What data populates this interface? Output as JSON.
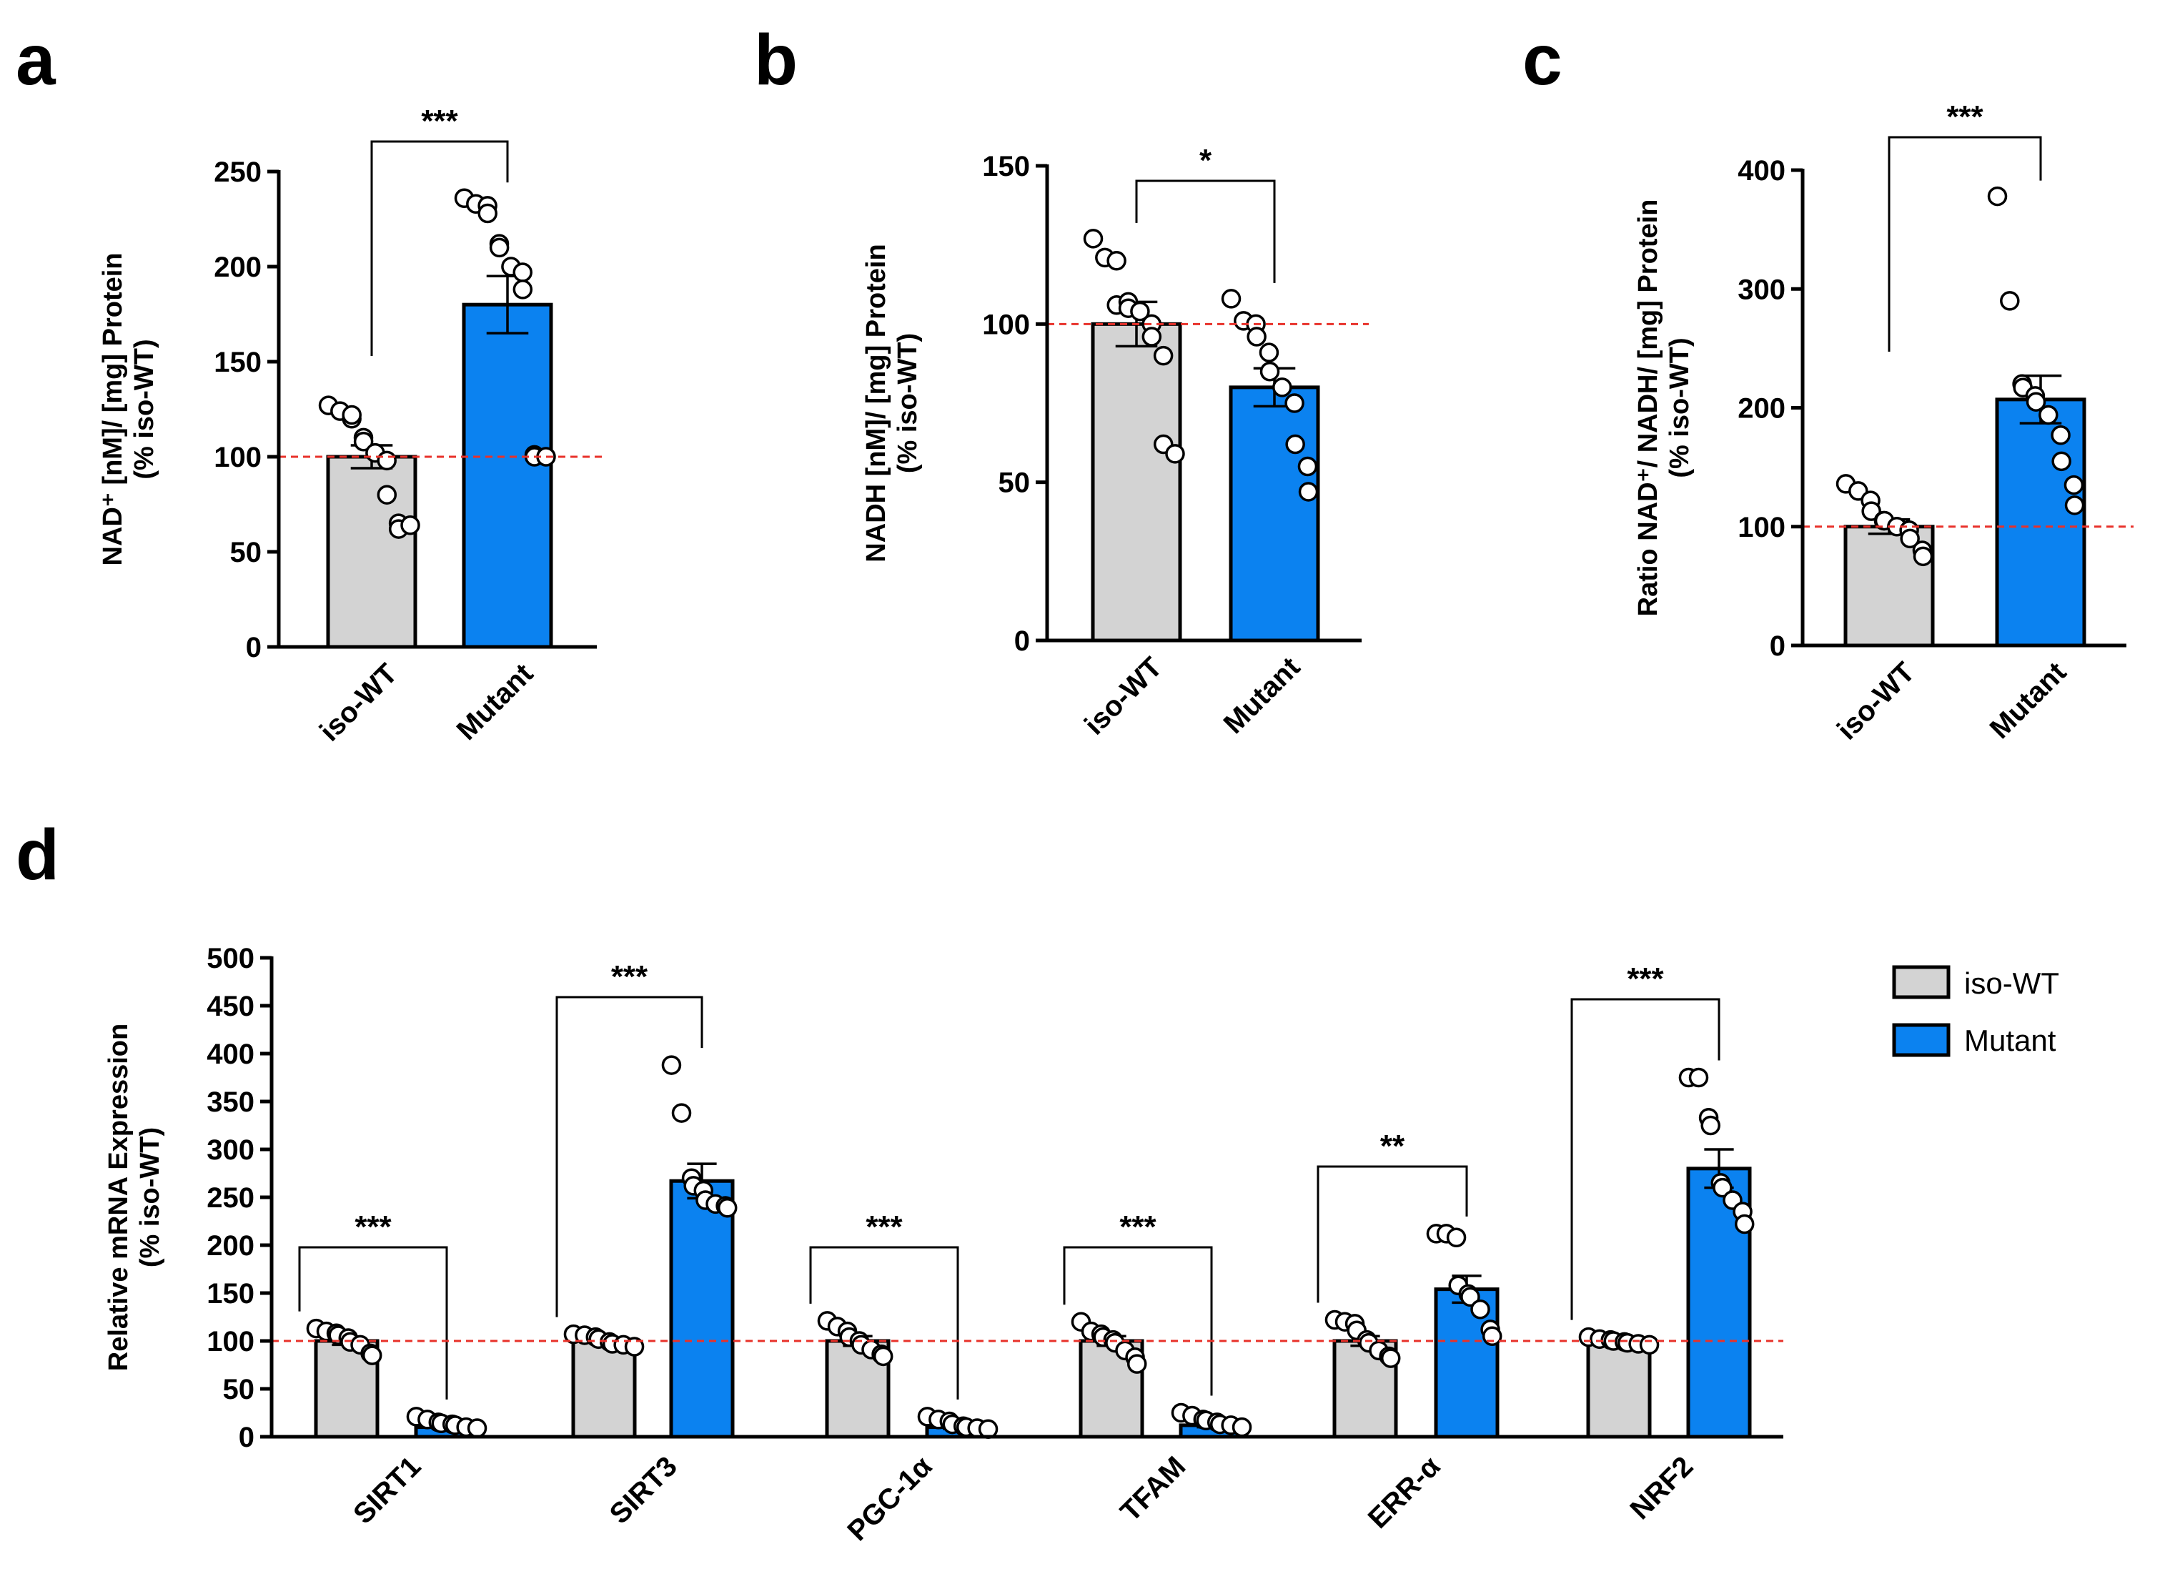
{
  "colors": {
    "wt": "#d3d3d3",
    "mutant": "#0b82f0",
    "reference": "#e8312a",
    "axis": "#000000"
  },
  "legend": [
    {
      "label": "iso-WT",
      "color": "#d3d3d3"
    },
    {
      "label": "Mutant",
      "color": "#0b82f0"
    }
  ],
  "chart_data": [
    {
      "panel": "a",
      "type": "bar",
      "ylabel_line1": "NAD⁺ [nM]/ [mg] Protein",
      "ylabel_line2": "(% iso-WT)",
      "ylim": [
        0,
        250
      ],
      "yticks": [
        0,
        50,
        100,
        150,
        200,
        250
      ],
      "reference_line": 100,
      "categories": [
        "iso-WT",
        "Mutant"
      ],
      "bars": [
        {
          "value": 100,
          "sem": 6,
          "points": [
            127,
            124,
            120,
            122,
            110,
            108,
            102,
            98,
            80,
            65,
            62,
            64
          ]
        },
        {
          "value": 180,
          "sem": 15,
          "points": [
            236,
            233,
            232,
            228,
            212,
            210,
            200,
            197,
            188,
            101,
            100,
            100
          ]
        }
      ],
      "significance": "***"
    },
    {
      "panel": "b",
      "type": "bar",
      "ylabel_line1": "NADH [nM]/ [mg] Protein",
      "ylabel_line2": "(% iso-WT)",
      "ylim": [
        0,
        150
      ],
      "yticks": [
        0,
        50,
        100,
        150
      ],
      "reference_line": 100,
      "categories": [
        "iso-WT",
        "Mutant"
      ],
      "bars": [
        {
          "value": 100,
          "sem": 7,
          "points": [
            127,
            121,
            120,
            106,
            107,
            105,
            104,
            100,
            96,
            90,
            62,
            59
          ]
        },
        {
          "value": 80,
          "sem": 6,
          "points": [
            108,
            101,
            100,
            96,
            91,
            85,
            80,
            75,
            62,
            55,
            47
          ]
        }
      ],
      "significance": "*"
    },
    {
      "panel": "c",
      "type": "bar",
      "ylabel_line1": "Ratio NAD⁺/ NADH/ [mg] Protein",
      "ylabel_line2": "(% iso-WT)",
      "ylim": [
        0,
        400
      ],
      "yticks": [
        0,
        100,
        200,
        300,
        400
      ],
      "reference_line": 100,
      "categories": [
        "iso-WT",
        "Mutant"
      ],
      "bars": [
        {
          "value": 100,
          "sem": 6,
          "points": [
            136,
            130,
            122,
            113,
            105,
            105,
            100,
            97,
            90,
            80,
            75
          ]
        },
        {
          "value": 207,
          "sem": 20,
          "points": [
            378,
            290,
            220,
            217,
            210,
            205,
            194,
            177,
            155,
            135,
            118
          ]
        }
      ],
      "significance": "***"
    },
    {
      "panel": "d",
      "type": "bar",
      "ylabel_line1": "Relative mRNA Expression",
      "ylabel_line2": "(% iso-WT)",
      "ylim": [
        0,
        500
      ],
      "yticks": [
        0,
        50,
        100,
        150,
        200,
        250,
        300,
        350,
        400,
        450,
        500
      ],
      "reference_line": 100,
      "categories": [
        "SIRT1",
        "SIRT3",
        "PGC-1α",
        "TFAM",
        "ERR-α",
        "NRF2"
      ],
      "series": [
        {
          "name": "iso-WT",
          "values": [
            100,
            100,
            100,
            100,
            100,
            100
          ],
          "sem": [
            4,
            2,
            5,
            5,
            5,
            2
          ],
          "points": [
            [
              113,
              110,
              108,
              106,
              103,
              99,
              96,
              87,
              85
            ],
            [
              107,
              106,
              104,
              102,
              99,
              97,
              96,
              94
            ],
            [
              121,
              115,
              110,
              104,
              100,
              96,
              91,
              86,
              84
            ],
            [
              120,
              110,
              107,
              104,
              101,
              98,
              90,
              83,
              76
            ],
            [
              122,
              120,
              118,
              111,
              101,
              98,
              90,
              84,
              82
            ],
            [
              104,
              102,
              101,
              100,
              99,
              98,
              97,
              96
            ]
          ]
        },
        {
          "name": "Mutant",
          "values": [
            10,
            267,
            10,
            12,
            154,
            280
          ],
          "sem": [
            2,
            18,
            2,
            2,
            14,
            20
          ],
          "points": [
            [
              21,
              18,
              15,
              14,
              13,
              12,
              10,
              9
            ],
            [
              388,
              338,
              270,
              262,
              257,
              247,
              243,
              241,
              239
            ],
            [
              21,
              18,
              16,
              13,
              11,
              10,
              9,
              8
            ],
            [
              25,
              22,
              18,
              17,
              15,
              13,
              12,
              10
            ],
            [
              212,
              212,
              208,
              158,
              149,
              146,
              133,
              112,
              105
            ],
            [
              375,
              375,
              333,
              325,
              265,
              260,
              247,
              235,
              222
            ]
          ]
        }
      ],
      "significance": [
        "***",
        "***",
        "***",
        "***",
        "**",
        "***"
      ]
    }
  ]
}
